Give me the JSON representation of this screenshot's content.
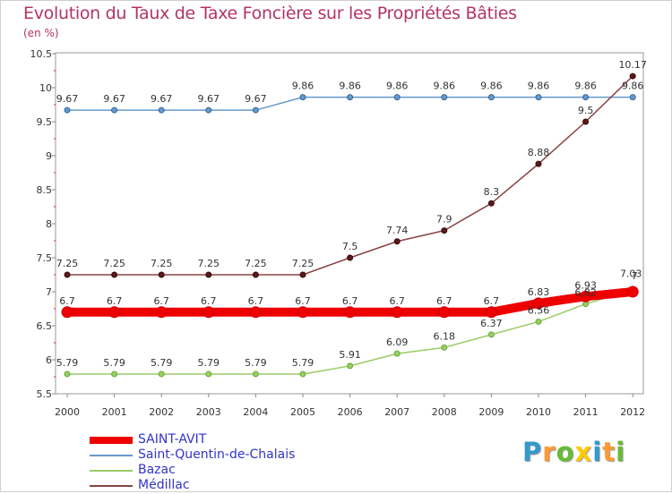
{
  "title": "Evolution du Taux de Taxe Foncière sur les Propriétés Bâties",
  "unit_label": "(en %)",
  "chart_data": {
    "type": "line",
    "title": "Evolution du Taux de Taxe Foncière sur les Propriétés Bâties",
    "ylabel": "(en %)",
    "xlabel": "",
    "categories": [
      "2000",
      "2001",
      "2002",
      "2003",
      "2004",
      "2005",
      "2006",
      "2007",
      "2008",
      "2009",
      "2010",
      "2011",
      "2012"
    ],
    "ylim": [
      5.5,
      10.5
    ],
    "yticks": [
      "5.5",
      "6",
      "6.5",
      "7",
      "7.5",
      "8",
      "8.5",
      "9",
      "9.5",
      "10",
      "10.5"
    ],
    "grid": false,
    "legend_position": "bottom-left",
    "series": [
      {
        "name": "SAINT-AVIT",
        "color": "#ee0000",
        "values": [
          6.7,
          6.7,
          6.7,
          6.7,
          6.7,
          6.7,
          6.7,
          6.7,
          6.7,
          6.7,
          6.83,
          6.93,
          7.0
        ],
        "labels": [
          "6.7",
          "6.7",
          "6.7",
          "6.7",
          "6.7",
          "6.7",
          "6.7",
          "6.7",
          "6.7",
          "6.7",
          "6.83",
          "6.93",
          "7"
        ]
      },
      {
        "name": "Saint-Quentin-de-Chalais",
        "color": "#6699cc",
        "values": [
          9.67,
          9.67,
          9.67,
          9.67,
          9.67,
          9.86,
          9.86,
          9.86,
          9.86,
          9.86,
          9.86,
          9.86,
          9.86
        ],
        "labels": [
          "9.67",
          "9.67",
          "9.67",
          "9.67",
          "9.67",
          "9.86",
          "9.86",
          "9.86",
          "9.86",
          "9.86",
          "9.86",
          "9.86",
          "9.86"
        ]
      },
      {
        "name": "Bazac",
        "color": "#99cc66",
        "values": [
          5.79,
          5.79,
          5.79,
          5.79,
          5.79,
          5.79,
          5.91,
          6.09,
          6.18,
          6.37,
          6.56,
          6.82,
          7.03
        ],
        "labels": [
          "5.79",
          "5.79",
          "5.79",
          "5.79",
          "5.79",
          "5.79",
          "5.91",
          "6.09",
          "6.18",
          "6.37",
          "6.56",
          "6.82",
          "7.03"
        ]
      },
      {
        "name": "Médillac",
        "color": "#884444",
        "values": [
          7.25,
          7.25,
          7.25,
          7.25,
          7.25,
          7.25,
          7.5,
          7.74,
          7.9,
          8.3,
          8.88,
          9.5,
          10.17
        ],
        "labels": [
          "7.25",
          "7.25",
          "7.25",
          "7.25",
          "7.25",
          "7.25",
          "7.5",
          "7.74",
          "7.9",
          "8.3",
          "8.88",
          "9.5",
          "10.17"
        ]
      }
    ]
  },
  "logo": {
    "text": "Proxiti",
    "letters": [
      "P",
      "r",
      "o",
      "x",
      "i",
      "t",
      "i"
    ],
    "colors": [
      "#3399cc",
      "#ff9933",
      "#66bb33",
      "#ffcc00",
      "#3399cc",
      "#ff9933",
      "#66bb33"
    ]
  }
}
